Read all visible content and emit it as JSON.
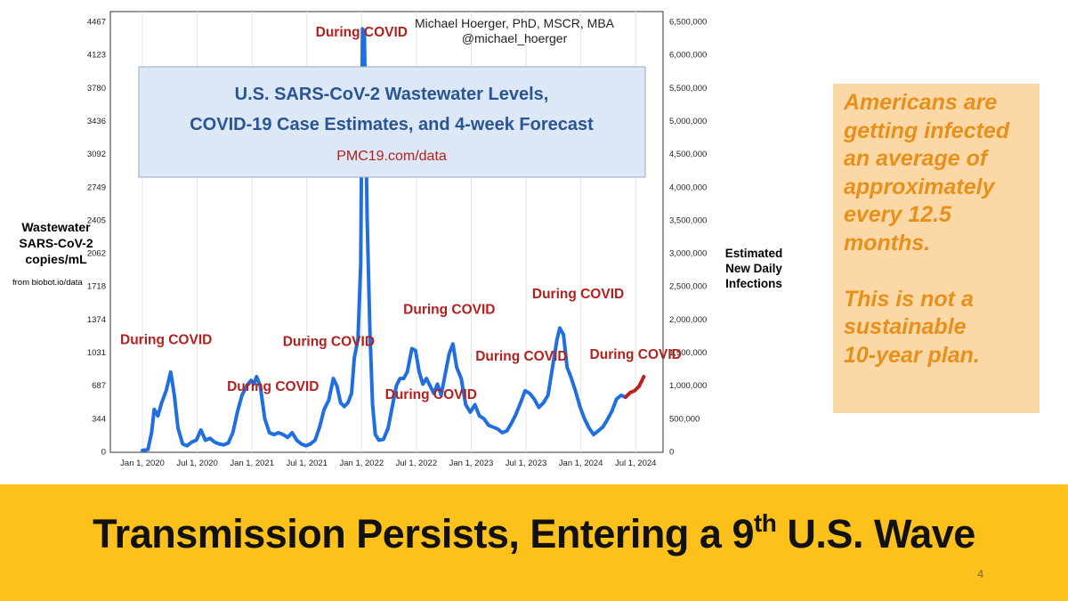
{
  "chart_data": {
    "type": "line",
    "author": "Michael Hoerger, PhD, MSCR, MBA",
    "handle": "@michael_hoerger",
    "title_lines": [
      "U.S. SARS-CoV-2 Wastewater Levels,",
      "COVID-19 Case Estimates, and 4-week Forecast"
    ],
    "title_link": "PMC19.com/data",
    "left_axis_label": [
      "Wastewater",
      "SARS-CoV-2",
      "copies/mL"
    ],
    "left_axis_source": "from biobot.io/data",
    "right_axis_label": [
      "Estimated",
      "New Daily",
      "Infections"
    ],
    "ylim": [
      0,
      4600
    ],
    "y_ticks_left": [
      0,
      344,
      687,
      1031,
      1374,
      1718,
      2062,
      2405,
      2749,
      3092,
      3436,
      3780,
      4123,
      4467
    ],
    "y_ticks_right": [
      "0",
      "500,000",
      "1,000,000",
      "1,500,000",
      "2,000,000",
      "2,500,000",
      "3,000,000",
      "3,500,000",
      "4,000,000",
      "4,500,000",
      "5,000,000",
      "5,500,000",
      "6,000,000",
      "6,500,000"
    ],
    "x_ticks": [
      "Jan 1, 2020",
      "Jul 1, 2020",
      "Jan 1, 2021",
      "Jul 1, 2021",
      "Jan 1, 2022",
      "Jul 1, 2022",
      "Jan 1, 2023",
      "Jul 1, 2023",
      "Jan 1, 2024",
      "Jul 1, 2024"
    ],
    "xlim_months": [
      0,
      57
    ],
    "series": [
      {
        "color": "#1f6fe0",
        "points": [
          [
            0,
            10
          ],
          [
            0.6,
            20
          ],
          [
            1.0,
            200
          ],
          [
            1.3,
            450
          ],
          [
            1.7,
            380
          ],
          [
            2.1,
            520
          ],
          [
            2.6,
            650
          ],
          [
            3.1,
            850
          ],
          [
            3.5,
            600
          ],
          [
            3.9,
            250
          ],
          [
            4.4,
            80
          ],
          [
            4.9,
            60
          ],
          [
            5.4,
            100
          ],
          [
            5.9,
            120
          ],
          [
            6.4,
            230
          ],
          [
            6.9,
            120
          ],
          [
            7.4,
            140
          ],
          [
            7.9,
            100
          ],
          [
            8.4,
            80
          ],
          [
            8.9,
            70
          ],
          [
            9.4,
            90
          ],
          [
            9.9,
            200
          ],
          [
            10.4,
            420
          ],
          [
            10.9,
            600
          ],
          [
            11.4,
            700
          ],
          [
            11.9,
            760
          ],
          [
            12.2,
            720
          ],
          [
            12.5,
            800
          ],
          [
            12.9,
            700
          ],
          [
            13.4,
            350
          ],
          [
            13.9,
            200
          ],
          [
            14.4,
            180
          ],
          [
            14.9,
            200
          ],
          [
            15.4,
            180
          ],
          [
            15.9,
            150
          ],
          [
            16.4,
            200
          ],
          [
            16.9,
            120
          ],
          [
            17.4,
            80
          ],
          [
            17.9,
            60
          ],
          [
            18.4,
            80
          ],
          [
            18.9,
            120
          ],
          [
            19.4,
            260
          ],
          [
            19.9,
            450
          ],
          [
            20.4,
            550
          ],
          [
            20.9,
            780
          ],
          [
            21.3,
            700
          ],
          [
            21.7,
            520
          ],
          [
            22.1,
            480
          ],
          [
            22.5,
            520
          ],
          [
            22.9,
            620
          ],
          [
            23.2,
            1000
          ],
          [
            23.6,
            1200
          ],
          [
            23.9,
            2000
          ],
          [
            24.1,
            4520
          ],
          [
            24.3,
            4480
          ],
          [
            24.6,
            2500
          ],
          [
            24.9,
            1300
          ],
          [
            25.2,
            500
          ],
          [
            25.5,
            180
          ],
          [
            25.9,
            120
          ],
          [
            26.4,
            130
          ],
          [
            26.9,
            250
          ],
          [
            27.4,
            500
          ],
          [
            27.8,
            700
          ],
          [
            28.2,
            780
          ],
          [
            28.6,
            780
          ],
          [
            29.0,
            850
          ],
          [
            29.5,
            1100
          ],
          [
            29.9,
            1080
          ],
          [
            30.3,
            850
          ],
          [
            30.7,
            720
          ],
          [
            31.1,
            780
          ],
          [
            31.5,
            700
          ],
          [
            31.9,
            620
          ],
          [
            32.3,
            720
          ],
          [
            32.7,
            600
          ],
          [
            33.1,
            800
          ],
          [
            33.6,
            1050
          ],
          [
            34.0,
            1150
          ],
          [
            34.4,
            900
          ],
          [
            34.9,
            780
          ],
          [
            35.4,
            500
          ],
          [
            35.9,
            420
          ],
          [
            36.4,
            500
          ],
          [
            36.9,
            380
          ],
          [
            37.4,
            350
          ],
          [
            37.9,
            280
          ],
          [
            38.4,
            260
          ],
          [
            38.9,
            240
          ],
          [
            39.4,
            200
          ],
          [
            39.9,
            220
          ],
          [
            40.4,
            300
          ],
          [
            40.9,
            400
          ],
          [
            41.4,
            520
          ],
          [
            41.9,
            650
          ],
          [
            42.4,
            620
          ],
          [
            42.9,
            560
          ],
          [
            43.4,
            470
          ],
          [
            43.9,
            520
          ],
          [
            44.4,
            600
          ],
          [
            44.9,
            900
          ],
          [
            45.4,
            1200
          ],
          [
            45.7,
            1320
          ],
          [
            46.1,
            1250
          ],
          [
            46.5,
            900
          ],
          [
            46.9,
            800
          ],
          [
            47.4,
            650
          ],
          [
            47.9,
            480
          ],
          [
            48.4,
            350
          ],
          [
            48.9,
            250
          ],
          [
            49.4,
            180
          ],
          [
            49.9,
            220
          ],
          [
            50.4,
            260
          ],
          [
            50.9,
            340
          ],
          [
            51.4,
            430
          ],
          [
            51.9,
            560
          ],
          [
            52.4,
            600
          ],
          [
            52.9,
            580
          ]
        ]
      },
      {
        "color": "#c0201e",
        "points": [
          [
            52.9,
            580
          ],
          [
            53.4,
            630
          ],
          [
            53.9,
            650
          ],
          [
            54.4,
            700
          ],
          [
            54.9,
            800
          ]
        ]
      }
    ],
    "annotations": [
      {
        "text": "During COVID",
        "month": 24.0,
        "value": 4440
      },
      {
        "text": "During COVID",
        "month": 2.6,
        "value": 1150
      },
      {
        "text": "During COVID",
        "month": 14.3,
        "value": 650
      },
      {
        "text": "During COVID",
        "month": 20.4,
        "value": 1130
      },
      {
        "text": "During COVID",
        "month": 31.6,
        "value": 560
      },
      {
        "text": "During COVID",
        "month": 33.6,
        "value": 1470
      },
      {
        "text": "During COVID",
        "month": 41.5,
        "value": 970
      },
      {
        "text": "During COVID",
        "month": 47.7,
        "value": 1640
      },
      {
        "text": "During COVID",
        "month": 54.0,
        "value": 990
      }
    ]
  },
  "callout": {
    "paragraph1": [
      "Americans are",
      "getting infected",
      "an average of",
      "approximately",
      "every 12.5",
      "months."
    ],
    "paragraph2": [
      "This is not a",
      "sustainable",
      "10-year plan."
    ]
  },
  "banner": {
    "title_main": "Transmission Persists, Entering a 9",
    "title_sup": "th",
    "title_end": " U.S. Wave"
  },
  "page_number": "4",
  "colors": {
    "series": "#1f6fe0",
    "forecast": "#c0201e",
    "annotation": "#b3201e",
    "title_box": "#dce8f5",
    "title_text": "#2a5494",
    "callout_bg": "#fbd8a6",
    "callout_text": "#e8901c",
    "banner_bg": "#fcc21b"
  }
}
